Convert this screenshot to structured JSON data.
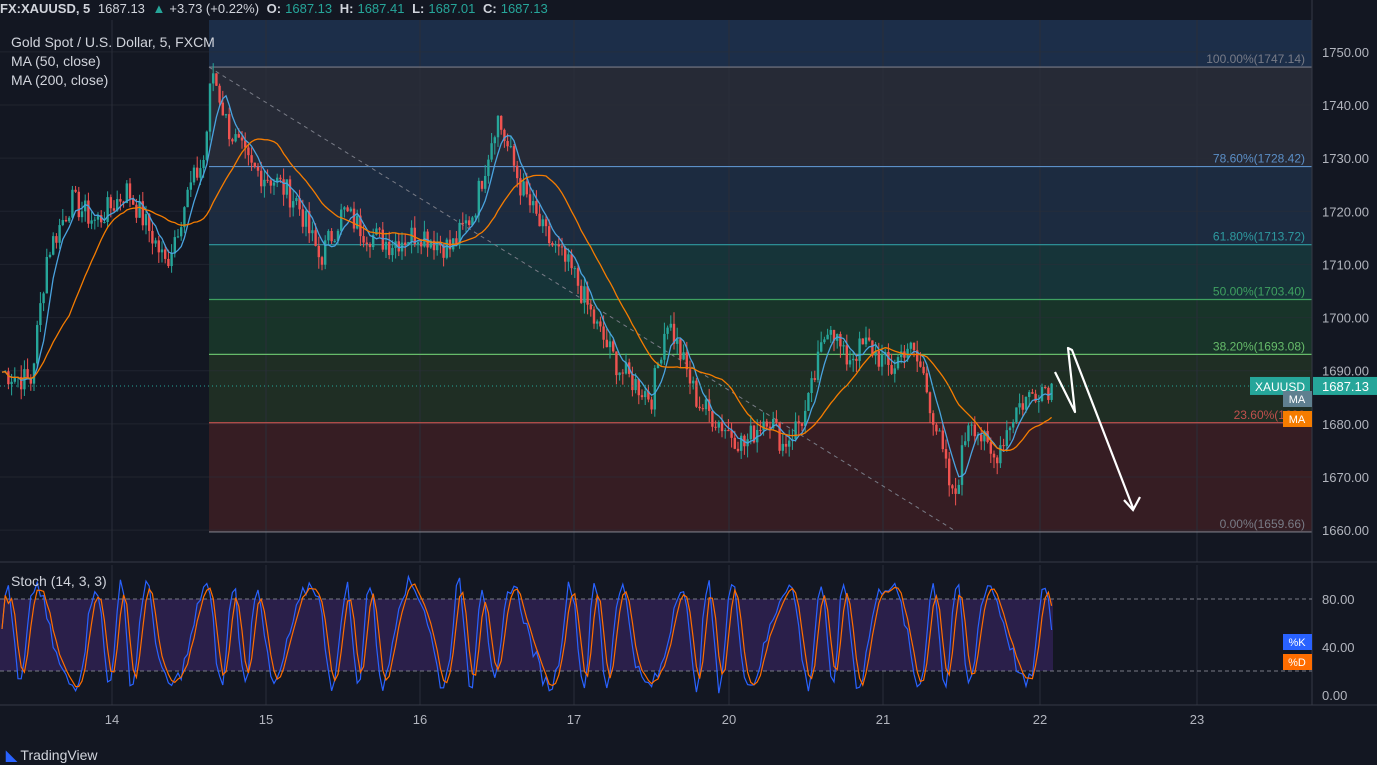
{
  "header": {
    "symbol": "FX:XAUUSD, 5",
    "last": "1687.13",
    "change_arrow": "▲",
    "change": "+3.73 (+0.22%)",
    "o_label": "O:",
    "o": "1687.13",
    "h_label": "H:",
    "h": "1687.41",
    "l_label": "L:",
    "l": "1687.01",
    "c_label": "C:",
    "c": "1687.13"
  },
  "legend": {
    "title": "Gold Spot / U.S. Dollar, 5, FXCM",
    "ma50": "MA (50, close)",
    "ma200": "MA (200, close)"
  },
  "stoch": {
    "label": "Stoch (14, 3, 3)",
    "k_badge": "%K",
    "d_badge": "%D",
    "levels": [
      80,
      20
    ],
    "ticks": [
      "80.00",
      "40.00",
      "0.00"
    ]
  },
  "price_axis": {
    "ticks": [
      "1750.00",
      "1740.00",
      "1730.00",
      "1720.00",
      "1710.00",
      "1700.00",
      "1690.00",
      "1680.00",
      "1670.00",
      "1660.00"
    ],
    "tick_values": [
      1750,
      1740,
      1730,
      1720,
      1710,
      1700,
      1690,
      1680,
      1670,
      1660
    ],
    "ylim": [
      1654,
      1756
    ]
  },
  "badges": {
    "symbol": "XAUUSD",
    "price": "1687.13",
    "ma1": "MA",
    "ma2": "MA"
  },
  "time_axis": {
    "labels": [
      "14",
      "15",
      "16",
      "17",
      "20",
      "21",
      "22",
      "23"
    ]
  },
  "fib_levels": [
    {
      "label": "100.00%(1747.14)",
      "value": 1747.14,
      "fill": "#2a2e39",
      "line": "#787b86"
    },
    {
      "label": "78.60%(1728.42)",
      "value": 1728.42,
      "fill": "#1e2f45",
      "line": "#5b8fc7"
    },
    {
      "label": "61.80%(1713.72)",
      "value": 1713.72,
      "fill": "#173a3d",
      "line": "#2e9aa0"
    },
    {
      "label": "50.00%(1703.40)",
      "value": 1703.4,
      "fill": "#1a3a2a",
      "line": "#3fa060"
    },
    {
      "label": "38.20%(1693.08)",
      "value": 1693.08,
      "fill": "#223325",
      "line": "#66bb6a"
    },
    {
      "label": "23.60%(1680",
      "value": 1680.2,
      "fill": "#3d1f23",
      "line": "#c0504d"
    },
    {
      "label": "0.00%(1659.66)",
      "value": 1659.66,
      "fill": "#3d1f23",
      "line": "#787b86"
    }
  ],
  "colors": {
    "background": "#131722",
    "up": "#26a69a",
    "down": "#ef5350",
    "ma50": "#4aa3df",
    "ma200": "#f57c00",
    "stoch_k": "#2962ff",
    "stoch_d": "#ff6d00",
    "stoch_band": "#2a1f4a"
  },
  "footer": {
    "brand": "TradingView"
  },
  "chart_data": {
    "type": "candlestick",
    "title": "Gold Spot / U.S. Dollar, 5, FXCM",
    "y_range": [
      1654,
      1756
    ],
    "x_categories": [
      "14",
      "15",
      "16",
      "17",
      "20",
      "21",
      "22",
      "23"
    ],
    "series": [
      {
        "name": "XAUUSD",
        "close_path": [
          [
            13.3,
            1690
          ],
          [
            13.5,
            1688
          ],
          [
            13.6,
            1712
          ],
          [
            13.75,
            1722
          ],
          [
            13.9,
            1718
          ],
          [
            14.1,
            1724
          ],
          [
            14.25,
            1716
          ],
          [
            14.35,
            1710
          ],
          [
            14.5,
            1724
          ],
          [
            14.6,
            1730
          ],
          [
            14.65,
            1747
          ],
          [
            14.75,
            1736
          ],
          [
            14.9,
            1728
          ],
          [
            15.05,
            1726
          ],
          [
            15.2,
            1722
          ],
          [
            15.35,
            1711
          ],
          [
            15.5,
            1720
          ],
          [
            15.65,
            1716
          ],
          [
            15.8,
            1714
          ],
          [
            16.0,
            1716
          ],
          [
            16.2,
            1713
          ],
          [
            16.35,
            1720
          ],
          [
            16.5,
            1738
          ],
          [
            16.65,
            1725
          ],
          [
            16.8,
            1716
          ],
          [
            17.0,
            1708
          ],
          [
            17.15,
            1698
          ],
          [
            17.3,
            1690
          ],
          [
            17.5,
            1685
          ],
          [
            17.6,
            1700
          ],
          [
            17.8,
            1684
          ],
          [
            17.95,
            1680
          ],
          [
            18.1,
            1676
          ],
          [
            18.25,
            1682
          ],
          [
            18.35,
            1676
          ],
          [
            18.5,
            1682
          ],
          [
            18.65,
            1700
          ],
          [
            18.75,
            1692
          ],
          [
            18.9,
            1695
          ],
          [
            19.05,
            1690
          ],
          [
            19.15,
            1695
          ],
          [
            19.25,
            1690
          ],
          [
            19.35,
            1678
          ],
          [
            19.45,
            1665
          ],
          [
            19.55,
            1682
          ],
          [
            19.7,
            1673
          ],
          [
            19.85,
            1683
          ],
          [
            20.0,
            1687
          ]
        ]
      },
      {
        "name": "MA (50, close)",
        "color": "#4aa3df"
      },
      {
        "name": "MA (200, close)",
        "color": "#f57c00"
      }
    ],
    "annotations": [
      "fibonacci retracement 100.00% 1747.14 to 0.00% 1659.66",
      "projection arrow to 1660"
    ]
  }
}
